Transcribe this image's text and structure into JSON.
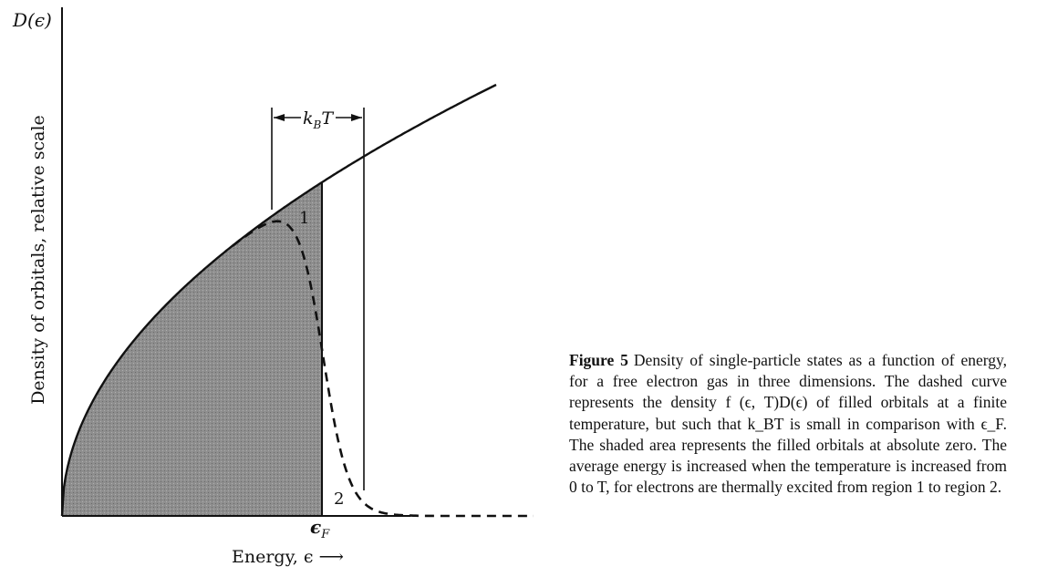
{
  "diagram": {
    "y_axis_symbol": "D(ϵ)",
    "y_axis_label": "Density of orbitals, relative scale",
    "x_axis_label": "Energy, ϵ ⟶",
    "fermi_label": "ϵ",
    "fermi_sub": "F",
    "kbt_label_k": "k",
    "kbt_label_sub": "B",
    "kbt_label_T": "T",
    "region_1_label": "1",
    "region_2_label": "2",
    "colors": {
      "shade": "#8c8c8c",
      "ink": "#111111"
    }
  },
  "caption": {
    "figure_label": "Figure 5",
    "text": "Density of single-particle states as a function of energy, for a free electron gas in three dimensions. The dashed curve represents the density f (ϵ, T)D(ϵ) of filled orbitals at a finite temperature, but such that k_BT is small in comparison with ϵ_F. The shaded area represents the filled orbitals at absolute zero. The average energy is increased when the temperature is increased from 0 to T, for electrons are thermally excited from region 1 to region 2."
  }
}
